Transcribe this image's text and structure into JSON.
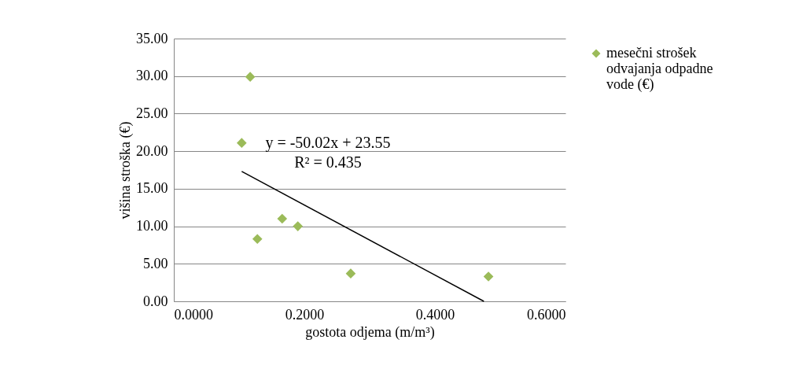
{
  "chart_data": {
    "type": "scatter",
    "xlabel": "gostota odjema (m/m³)",
    "ylabel": "višina stroška (€)",
    "xlim": [
      0,
      0.6
    ],
    "xticks": [
      {
        "value": 0,
        "label": "0.0000"
      },
      {
        "value": 0.2,
        "label": "0.2000"
      },
      {
        "value": 0.4,
        "label": "0.4000"
      },
      {
        "value": 0.6,
        "label": "0.6000"
      }
    ],
    "ylim": [
      0,
      35
    ],
    "yticks": [
      {
        "value": 0,
        "label": "0.00"
      },
      {
        "value": 5,
        "label": "5.00"
      },
      {
        "value": 10,
        "label": "10.00"
      },
      {
        "value": 15,
        "label": "15.00"
      },
      {
        "value": 20,
        "label": "20.00"
      },
      {
        "value": 25,
        "label": "25.00"
      },
      {
        "value": 30,
        "label": "30.00"
      },
      {
        "value": 35,
        "label": "35.00"
      }
    ],
    "grid": "y",
    "legend": "right",
    "marker": "diamond",
    "series": [
      {
        "name": "mesečni strošek odvajanja odpadne vode (€)",
        "color": "#9bbb59",
        "x": [
          0.117,
          0.104,
          0.128,
          0.166,
          0.19,
          0.271,
          0.482
        ],
        "values": [
          29.9,
          21.1,
          8.3,
          11.0,
          10.0,
          3.7,
          3.3
        ]
      },
      {
        "type": "line",
        "color": "#000000",
        "line_style": "solid",
        "marker": "none",
        "x": [
          0.104,
          0.475
        ],
        "values": [
          17.3,
          0
        ]
      }
    ],
    "annotations": [
      "y = -50.02x + 23.55",
      "R² = 0.435"
    ]
  }
}
